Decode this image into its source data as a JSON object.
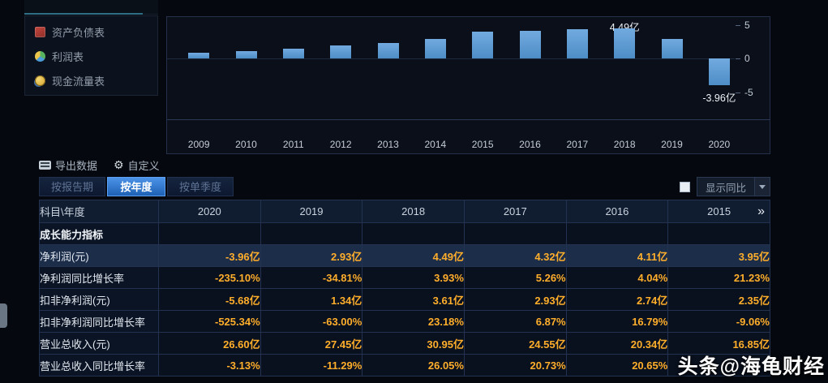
{
  "colors": {
    "accent_blue": "#2f7fd9",
    "bar_blue": "#5b9bd5",
    "value_yellow": "#ffae2b",
    "tab_active_blue": "#1e61b4",
    "background": "#05090f"
  },
  "sidebar": {
    "items": [
      {
        "label": "资产负债表",
        "icon": "balance-sheet-icon"
      },
      {
        "label": "利润表",
        "icon": "income-statement-icon"
      },
      {
        "label": "现金流量表",
        "icon": "cash-flow-icon"
      }
    ]
  },
  "chart_data": {
    "type": "bar",
    "title": "",
    "categories": [
      "2009",
      "2010",
      "2011",
      "2012",
      "2013",
      "2014",
      "2015",
      "2016",
      "2017",
      "2018",
      "2019",
      "2020"
    ],
    "values": [
      0.8,
      1.1,
      1.5,
      1.9,
      2.3,
      2.9,
      3.95,
      4.11,
      4.32,
      4.49,
      2.93,
      -3.96
    ],
    "unit": "亿",
    "ylim": [
      -5,
      5
    ],
    "yticks": [
      5,
      0,
      -5
    ],
    "grid": false,
    "legend": false,
    "max_label": "4.49亿",
    "min_label": "-3.96亿",
    "annotated_max_category": "2018",
    "annotated_min_category": "2020"
  },
  "toolbar": {
    "export_label": "导出数据",
    "customize_label": "自定义"
  },
  "tabs": [
    {
      "label": "按报告期",
      "active": false
    },
    {
      "label": "按年度",
      "active": true
    },
    {
      "label": "按单季度",
      "active": false
    }
  ],
  "yoy_toggle": {
    "label": "显示同比",
    "checked": false
  },
  "table": {
    "header": {
      "first": "科目\\年度",
      "years": [
        "2020",
        "2019",
        "2018",
        "2017",
        "2016",
        "2015"
      ],
      "more": "»"
    },
    "rows": [
      {
        "label": "成长能力指标",
        "section": true,
        "values": [
          "",
          "",
          "",
          "",
          "",
          ""
        ]
      },
      {
        "label": "净利润(元)",
        "highlight": true,
        "values": [
          "-3.96亿",
          "2.93亿",
          "4.49亿",
          "4.32亿",
          "4.11亿",
          "3.95亿"
        ]
      },
      {
        "label": "净利润同比增长率",
        "values": [
          "-235.10%",
          "-34.81%",
          "3.93%",
          "5.26%",
          "4.04%",
          "21.23%"
        ]
      },
      {
        "label": "扣非净利润(元)",
        "values": [
          "-5.68亿",
          "1.34亿",
          "3.61亿",
          "2.93亿",
          "2.74亿",
          "2.35亿"
        ]
      },
      {
        "label": "扣非净利润同比增长率",
        "values": [
          "-525.34%",
          "-63.00%",
          "23.18%",
          "6.87%",
          "16.79%",
          "-9.06%"
        ]
      },
      {
        "label": "营业总收入(元)",
        "values": [
          "26.60亿",
          "27.45亿",
          "30.95亿",
          "24.55亿",
          "20.34亿",
          "16.85亿"
        ]
      },
      {
        "label": "营业总收入同比增长率",
        "values": [
          "-3.13%",
          "-11.29%",
          "26.05%",
          "20.73%",
          "20.65%",
          ""
        ]
      }
    ]
  },
  "watermark": {
    "text": "头条@海龟财经"
  }
}
